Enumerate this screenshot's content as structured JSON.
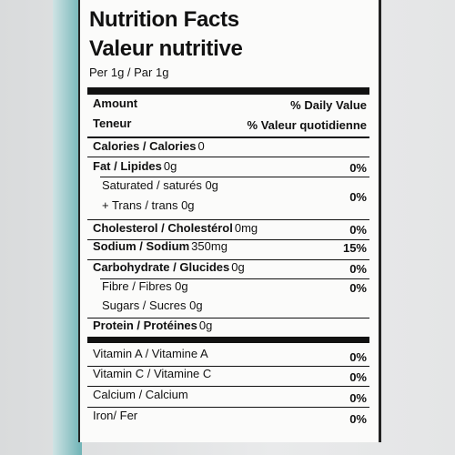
{
  "header": {
    "title": "Nutrition Facts",
    "title_fr": "Valeur nutritive",
    "serving": "Per 1g / Par 1g"
  },
  "columns": {
    "amount": "Amount",
    "dv": "% Daily Value",
    "amount_fr": "Teneur",
    "dv_fr": "% Valeur quotidienne"
  },
  "rows": [
    {
      "label": "Calories / Calories",
      "amount": "0"
    },
    {
      "label": "Fat / Lipides",
      "amount": "0g",
      "dv": "0%"
    },
    {
      "label": "Saturated / saturés 0g",
      "label2": "+ Trans / trans 0g",
      "dv": "0%"
    },
    {
      "label": "Cholesterol / Cholestérol",
      "amount": "0mg",
      "dv": "0%"
    },
    {
      "label": "Sodium / Sodium",
      "amount": "350mg",
      "dv": "15%"
    },
    {
      "label": "Carbohydrate / Glucides",
      "amount": "0g",
      "dv": "0%"
    },
    {
      "label": "Fibre / Fibres 0g",
      "dv": "0%"
    },
    {
      "label": "Sugars / Sucres 0g"
    },
    {
      "label": "Protein / Protéines",
      "amount": "0g"
    }
  ],
  "vitamins": [
    {
      "label": "Vitamin A / Vitamine A",
      "dv": "0%"
    },
    {
      "label": "Vitamin C / Vitamine C",
      "dv": "0%"
    },
    {
      "label": "Calcium / Calcium",
      "dv": "0%"
    },
    {
      "label": "Iron/ Fer",
      "dv": "0%"
    }
  ]
}
